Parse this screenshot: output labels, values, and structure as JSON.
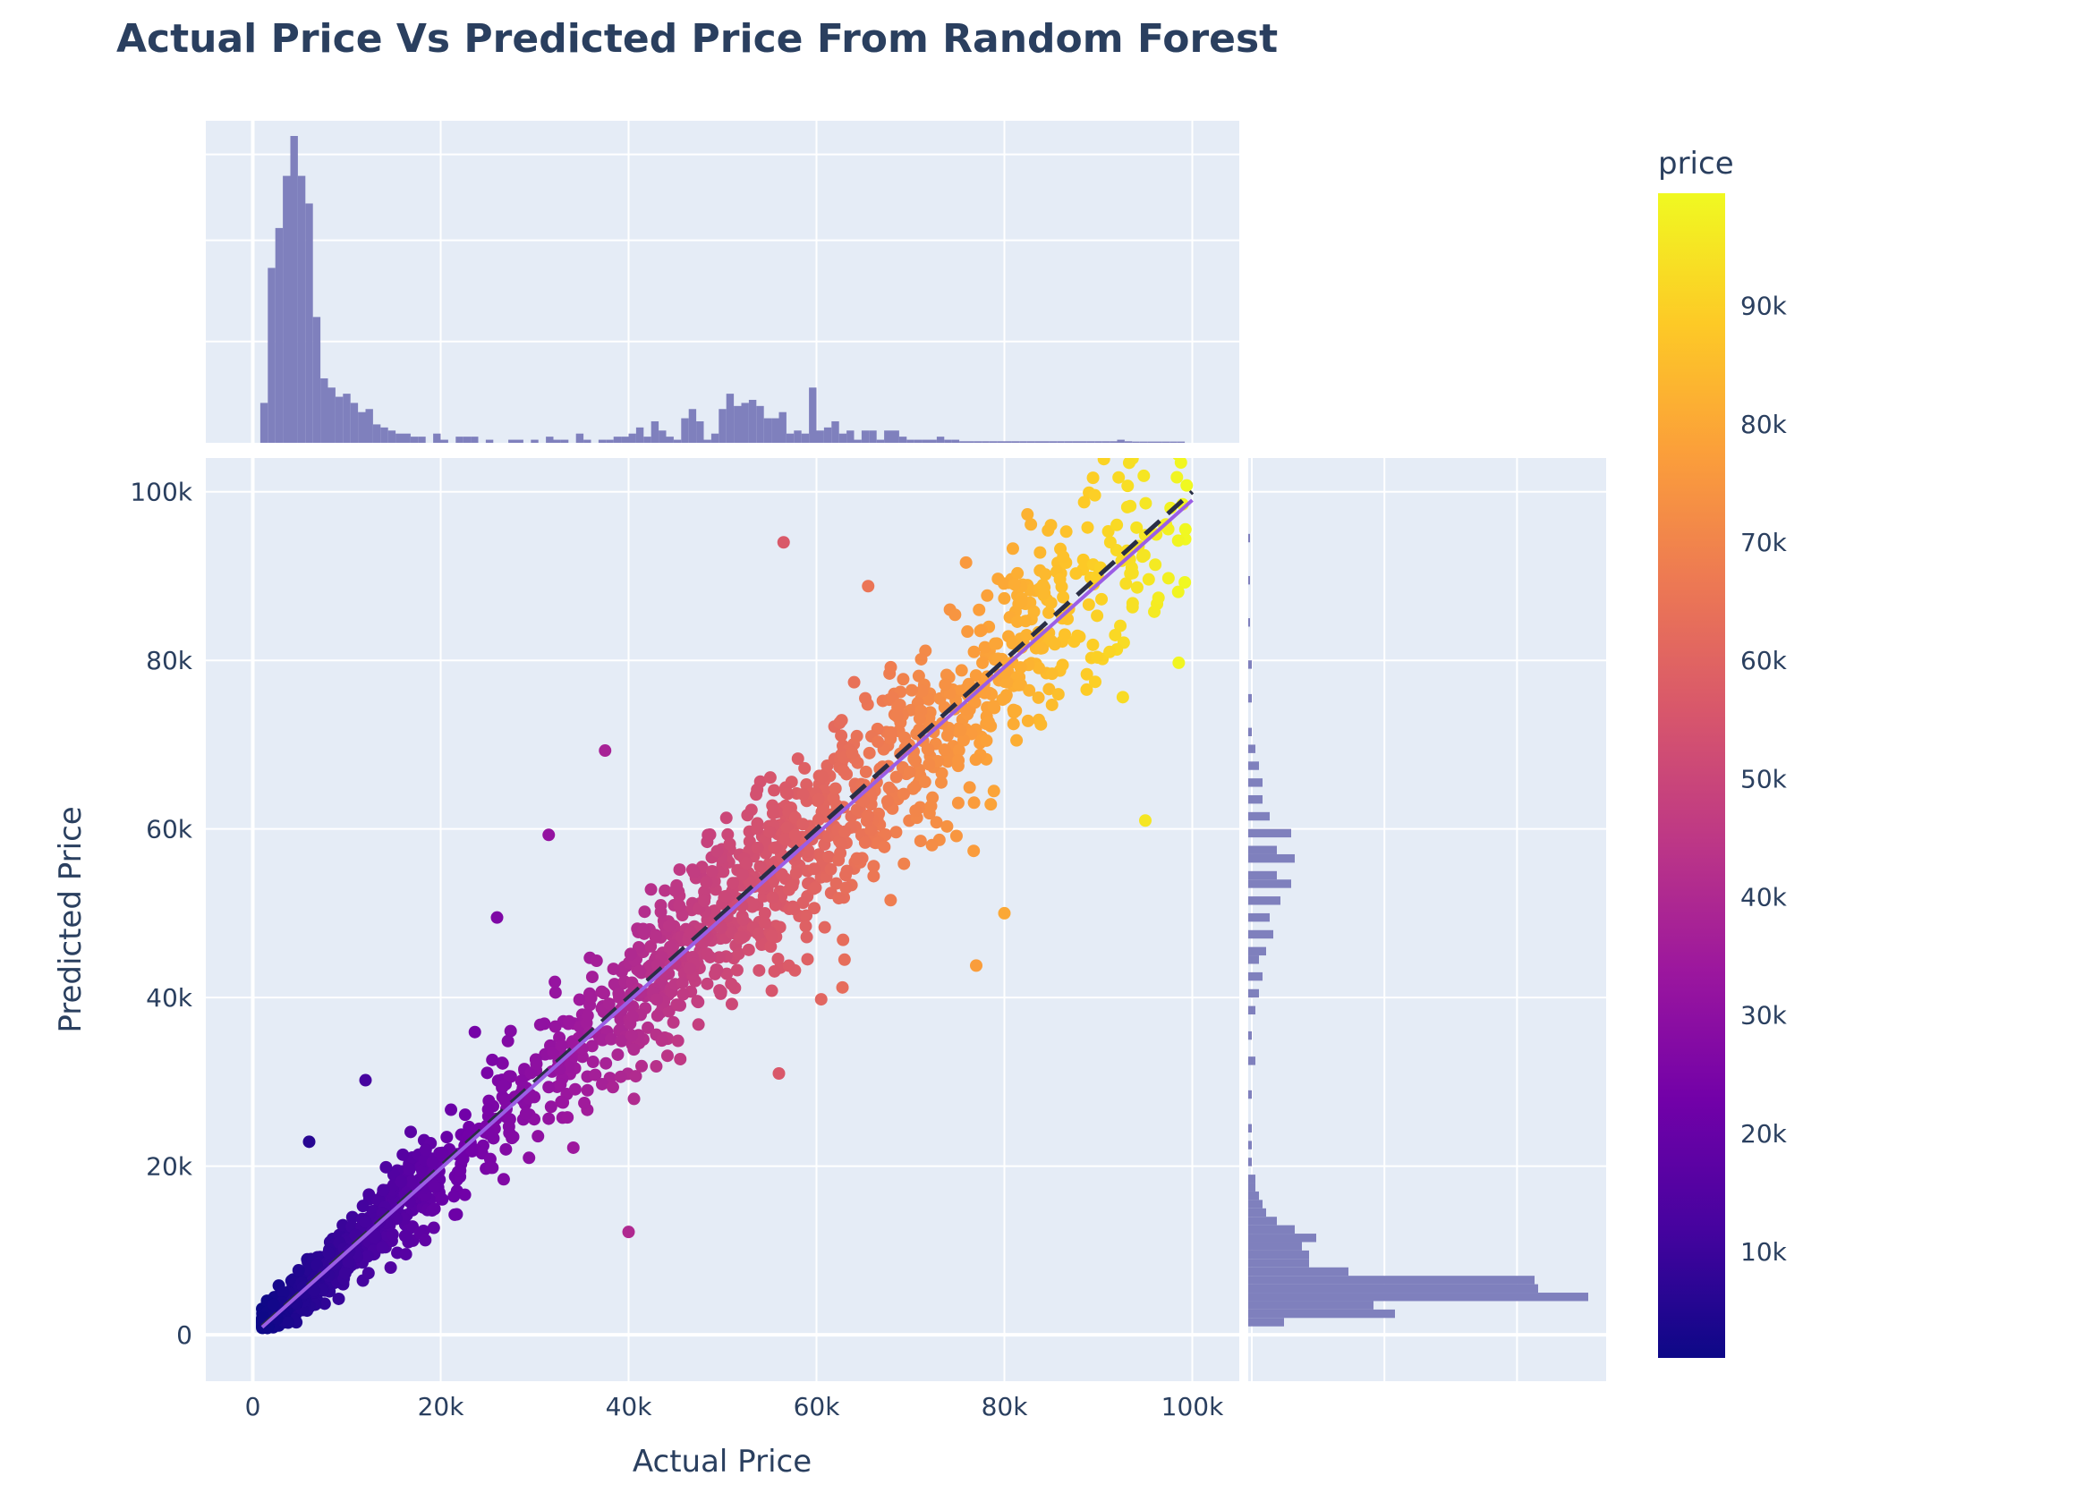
{
  "chart_data": {
    "type": "scatter",
    "title": "Actual Price Vs Predicted Price From Random Forest",
    "xlabel": "Actual Price",
    "ylabel": "Predicted Price",
    "xlim": [
      -5000,
      105000
    ],
    "ylim": [
      -5500,
      104000
    ],
    "x_ticks": [
      {
        "value": 0,
        "label": "0"
      },
      {
        "value": 20000,
        "label": "20k"
      },
      {
        "value": 40000,
        "label": "40k"
      },
      {
        "value": 60000,
        "label": "60k"
      },
      {
        "value": 80000,
        "label": "80k"
      },
      {
        "value": 100000,
        "label": "100k"
      }
    ],
    "y_ticks": [
      {
        "value": 0,
        "label": "0"
      },
      {
        "value": 20000,
        "label": "20k"
      },
      {
        "value": 40000,
        "label": "40k"
      },
      {
        "value": 60000,
        "label": "60k"
      },
      {
        "value": 80000,
        "label": "80k"
      },
      {
        "value": 100000,
        "label": "100k"
      }
    ],
    "grid": true,
    "colorscale": "plasma",
    "colorbar": {
      "title": "price",
      "range": [
        1000,
        99500
      ],
      "ticks": [
        {
          "value": 10000,
          "label": "10k"
        },
        {
          "value": 20000,
          "label": "20k"
        },
        {
          "value": 30000,
          "label": "30k"
        },
        {
          "value": 40000,
          "label": "40k"
        },
        {
          "value": 50000,
          "label": "50k"
        },
        {
          "value": 60000,
          "label": "60k"
        },
        {
          "value": 70000,
          "label": "70k"
        },
        {
          "value": 80000,
          "label": "80k"
        },
        {
          "value": 90000,
          "label": "90k"
        }
      ]
    },
    "reference_lines": [
      {
        "style": "dashed",
        "color": "#2a2e45",
        "x": [
          1000,
          100000
        ],
        "y": [
          1000,
          100000
        ]
      },
      {
        "style": "solid",
        "color": "#9b5de5",
        "x": [
          1000,
          100000
        ],
        "y": [
          900,
          99000
        ]
      }
    ],
    "marginal_histograms": {
      "color": "#7f80bd",
      "x_histogram": {
        "bin_width": 800,
        "bins": [
          {
            "x": 1200,
            "h": 0.13
          },
          {
            "x": 2000,
            "h": 0.57
          },
          {
            "x": 2800,
            "h": 0.7
          },
          {
            "x": 3600,
            "h": 0.87
          },
          {
            "x": 4400,
            "h": 1.0
          },
          {
            "x": 5200,
            "h": 0.87
          },
          {
            "x": 6000,
            "h": 0.78
          },
          {
            "x": 6800,
            "h": 0.41
          },
          {
            "x": 7600,
            "h": 0.21
          },
          {
            "x": 8400,
            "h": 0.18
          },
          {
            "x": 9200,
            "h": 0.15
          },
          {
            "x": 10000,
            "h": 0.16
          },
          {
            "x": 10800,
            "h": 0.13
          },
          {
            "x": 11600,
            "h": 0.1
          },
          {
            "x": 12400,
            "h": 0.11
          },
          {
            "x": 13200,
            "h": 0.06
          },
          {
            "x": 14000,
            "h": 0.05
          },
          {
            "x": 14800,
            "h": 0.04
          },
          {
            "x": 15600,
            "h": 0.03
          },
          {
            "x": 16400,
            "h": 0.03
          },
          {
            "x": 17200,
            "h": 0.02
          },
          {
            "x": 18000,
            "h": 0.02
          },
          {
            "x": 19600,
            "h": 0.03
          },
          {
            "x": 20400,
            "h": 0.01
          },
          {
            "x": 22000,
            "h": 0.02
          },
          {
            "x": 22800,
            "h": 0.02
          },
          {
            "x": 23600,
            "h": 0.02
          },
          {
            "x": 25200,
            "h": 0.01
          },
          {
            "x": 27600,
            "h": 0.01
          },
          {
            "x": 28400,
            "h": 0.01
          },
          {
            "x": 30000,
            "h": 0.01
          },
          {
            "x": 31600,
            "h": 0.02
          },
          {
            "x": 32400,
            "h": 0.01
          },
          {
            "x": 33200,
            "h": 0.01
          },
          {
            "x": 34800,
            "h": 0.03
          },
          {
            "x": 35600,
            "h": 0.01
          },
          {
            "x": 37200,
            "h": 0.01
          },
          {
            "x": 38000,
            "h": 0.01
          },
          {
            "x": 38800,
            "h": 0.02
          },
          {
            "x": 39600,
            "h": 0.02
          },
          {
            "x": 40400,
            "h": 0.03
          },
          {
            "x": 41200,
            "h": 0.05
          },
          {
            "x": 42000,
            "h": 0.02
          },
          {
            "x": 42800,
            "h": 0.07
          },
          {
            "x": 43600,
            "h": 0.04
          },
          {
            "x": 44400,
            "h": 0.02
          },
          {
            "x": 45200,
            "h": 0.01
          },
          {
            "x": 46000,
            "h": 0.08
          },
          {
            "x": 46800,
            "h": 0.11
          },
          {
            "x": 47600,
            "h": 0.07
          },
          {
            "x": 48400,
            "h": 0.01
          },
          {
            "x": 49200,
            "h": 0.03
          },
          {
            "x": 50000,
            "h": 0.11
          },
          {
            "x": 50800,
            "h": 0.16
          },
          {
            "x": 51600,
            "h": 0.12
          },
          {
            "x": 52400,
            "h": 0.13
          },
          {
            "x": 53200,
            "h": 0.14
          },
          {
            "x": 54000,
            "h": 0.12
          },
          {
            "x": 54800,
            "h": 0.08
          },
          {
            "x": 55600,
            "h": 0.08
          },
          {
            "x": 56400,
            "h": 0.1
          },
          {
            "x": 57200,
            "h": 0.03
          },
          {
            "x": 58000,
            "h": 0.04
          },
          {
            "x": 58800,
            "h": 0.03
          },
          {
            "x": 59600,
            "h": 0.18
          },
          {
            "x": 60400,
            "h": 0.04
          },
          {
            "x": 61200,
            "h": 0.05
          },
          {
            "x": 62000,
            "h": 0.07
          },
          {
            "x": 62800,
            "h": 0.03
          },
          {
            "x": 63600,
            "h": 0.04
          },
          {
            "x": 64400,
            "h": 0.01
          },
          {
            "x": 65200,
            "h": 0.04
          },
          {
            "x": 66000,
            "h": 0.04
          },
          {
            "x": 66800,
            "h": 0.01
          },
          {
            "x": 67600,
            "h": 0.04
          },
          {
            "x": 68400,
            "h": 0.04
          },
          {
            "x": 69200,
            "h": 0.02
          },
          {
            "x": 70000,
            "h": 0.01
          },
          {
            "x": 70800,
            "h": 0.01
          },
          {
            "x": 71600,
            "h": 0.01
          },
          {
            "x": 72400,
            "h": 0.01
          },
          {
            "x": 73200,
            "h": 0.02
          },
          {
            "x": 74000,
            "h": 0.01
          },
          {
            "x": 74800,
            "h": 0.01
          },
          {
            "x": 75600,
            "h": 0.005
          },
          {
            "x": 76400,
            "h": 0.005
          },
          {
            "x": 77200,
            "h": 0.005
          },
          {
            "x": 78000,
            "h": 0.005
          },
          {
            "x": 78800,
            "h": 0.005
          },
          {
            "x": 79600,
            "h": 0.005
          },
          {
            "x": 80400,
            "h": 0.005
          },
          {
            "x": 81200,
            "h": 0.005
          },
          {
            "x": 82000,
            "h": 0.005
          },
          {
            "x": 82800,
            "h": 0.005
          },
          {
            "x": 83600,
            "h": 0.005
          },
          {
            "x": 84400,
            "h": 0.005
          },
          {
            "x": 85200,
            "h": 0.005
          },
          {
            "x": 86000,
            "h": 0.005
          },
          {
            "x": 86800,
            "h": 0.005
          },
          {
            "x": 87600,
            "h": 0.005
          },
          {
            "x": 88400,
            "h": 0.005
          },
          {
            "x": 89200,
            "h": 0.005
          },
          {
            "x": 90000,
            "h": 0.005
          },
          {
            "x": 90800,
            "h": 0.005
          },
          {
            "x": 91600,
            "h": 0.005
          },
          {
            "x": 92400,
            "h": 0.01
          },
          {
            "x": 93200,
            "h": 0.005
          },
          {
            "x": 94000,
            "h": 0.004
          },
          {
            "x": 94800,
            "h": 0.004
          },
          {
            "x": 95600,
            "h": 0.004
          },
          {
            "x": 96400,
            "h": 0.004
          },
          {
            "x": 97200,
            "h": 0.004
          },
          {
            "x": 98000,
            "h": 0.004
          },
          {
            "x": 98800,
            "h": 0.004
          }
        ]
      },
      "y_histogram": {
        "bin_width": 1000,
        "bins": [
          {
            "y": 1500,
            "w": 0.1
          },
          {
            "y": 2500,
            "w": 0.41
          },
          {
            "y": 3500,
            "w": 0.35
          },
          {
            "y": 4500,
            "w": 0.95
          },
          {
            "y": 5500,
            "w": 0.81
          },
          {
            "y": 6500,
            "w": 0.8
          },
          {
            "y": 7500,
            "w": 0.28
          },
          {
            "y": 8500,
            "w": 0.17
          },
          {
            "y": 9500,
            "w": 0.17
          },
          {
            "y": 10500,
            "w": 0.15
          },
          {
            "y": 11500,
            "w": 0.19
          },
          {
            "y": 12500,
            "w": 0.13
          },
          {
            "y": 13500,
            "w": 0.08
          },
          {
            "y": 14500,
            "w": 0.05
          },
          {
            "y": 15500,
            "w": 0.04
          },
          {
            "y": 16500,
            "w": 0.03
          },
          {
            "y": 17500,
            "w": 0.02
          },
          {
            "y": 18500,
            "w": 0.02
          },
          {
            "y": 20500,
            "w": 0.01
          },
          {
            "y": 22500,
            "w": 0.01
          },
          {
            "y": 24500,
            "w": 0.01
          },
          {
            "y": 28500,
            "w": 0.01
          },
          {
            "y": 32500,
            "w": 0.02
          },
          {
            "y": 35500,
            "w": 0.01
          },
          {
            "y": 38500,
            "w": 0.02
          },
          {
            "y": 40500,
            "w": 0.03
          },
          {
            "y": 42500,
            "w": 0.04
          },
          {
            "y": 44500,
            "w": 0.03
          },
          {
            "y": 45500,
            "w": 0.05
          },
          {
            "y": 47500,
            "w": 0.07
          },
          {
            "y": 49500,
            "w": 0.06
          },
          {
            "y": 51500,
            "w": 0.09
          },
          {
            "y": 53500,
            "w": 0.12
          },
          {
            "y": 54500,
            "w": 0.08
          },
          {
            "y": 56500,
            "w": 0.13
          },
          {
            "y": 57500,
            "w": 0.08
          },
          {
            "y": 59500,
            "w": 0.12
          },
          {
            "y": 61500,
            "w": 0.06
          },
          {
            "y": 63500,
            "w": 0.04
          },
          {
            "y": 65500,
            "w": 0.04
          },
          {
            "y": 67500,
            "w": 0.03
          },
          {
            "y": 69500,
            "w": 0.02
          },
          {
            "y": 71500,
            "w": 0.01
          },
          {
            "y": 75500,
            "w": 0.01
          },
          {
            "y": 79500,
            "w": 0.01
          },
          {
            "y": 84500,
            "w": 0.005
          },
          {
            "y": 89500,
            "w": 0.005
          },
          {
            "y": 94500,
            "w": 0.005
          }
        ]
      }
    },
    "points": {
      "color_by": "x",
      "clusters": [
        {
          "x_range": [
            1000,
            20000
          ],
          "offset_sd": 2200,
          "count": 700
        },
        {
          "x_range": [
            20000,
            40000
          ],
          "offset_sd": 4000,
          "count": 220
        },
        {
          "x_range": [
            40000,
            62000
          ],
          "offset_sd": 5200,
          "count": 480
        },
        {
          "x_range": [
            62000,
            85000
          ],
          "offset_sd": 6200,
          "count": 380
        },
        {
          "x_range": [
            85000,
            99500
          ],
          "offset_sd": 7500,
          "count": 110
        }
      ],
      "highlighted_points": [
        {
          "x": 56500,
          "y": 94000
        },
        {
          "x": 65500,
          "y": 88800
        },
        {
          "x": 37500,
          "y": 69300
        },
        {
          "x": 31500,
          "y": 59300
        },
        {
          "x": 40000,
          "y": 12200
        },
        {
          "x": 12000,
          "y": 30200
        },
        {
          "x": 56000,
          "y": 31000
        },
        {
          "x": 60500,
          "y": 39800
        },
        {
          "x": 77000,
          "y": 43800
        },
        {
          "x": 98500,
          "y": 94200
        },
        {
          "x": 95000,
          "y": 61000
        },
        {
          "x": 80000,
          "y": 50000
        },
        {
          "x": 6000,
          "y": 22900
        },
        {
          "x": 26000,
          "y": 49500
        },
        {
          "x": 45500,
          "y": 32700
        }
      ]
    }
  }
}
